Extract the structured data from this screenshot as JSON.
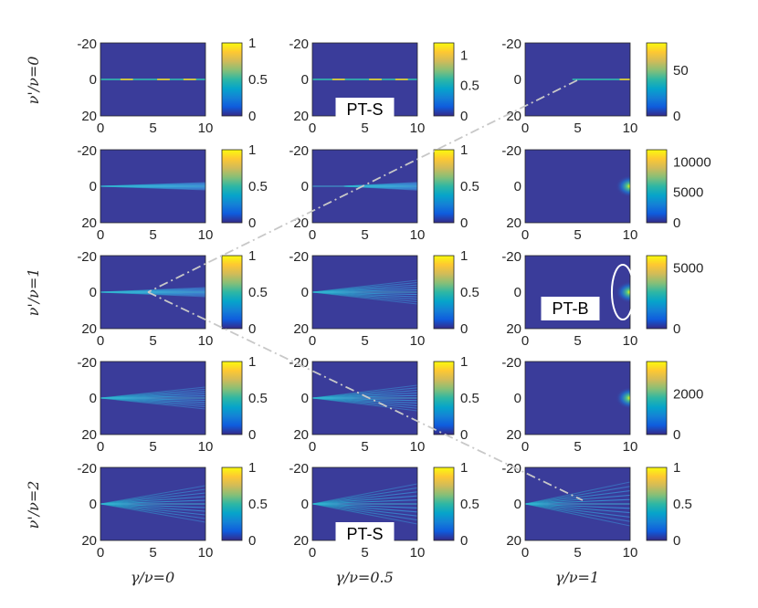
{
  "colors": {
    "background_low": "#3a3c9a",
    "colormap": [
      "#352a87",
      "#0f5cdd",
      "#1481d6",
      "#06a4ca",
      "#2eb7a4",
      "#87bf77",
      "#d1bb59",
      "#fec832",
      "#f9fb0e"
    ],
    "dashed_line": "#c8c8c8",
    "circle": "#ffffff"
  },
  "chart_data": {
    "type": "heatmap",
    "layout": "5 rows x 3 columns of heatmap panels, each with its own colorbar",
    "x_ticks": [
      "0",
      "5",
      "10"
    ],
    "y_ticks": [
      "-20",
      "0",
      "20"
    ],
    "xlim": [
      0,
      10
    ],
    "ylim": [
      -20,
      20
    ],
    "column_labels": [
      "γ/ν=0",
      "γ/ν=0.5",
      "γ/ν=1"
    ],
    "row_labels": [
      "ν'/ν=0",
      "",
      "ν'/ν=1",
      "",
      "ν'/ν=2"
    ],
    "panels": [
      {
        "row": 0,
        "col": 0,
        "colorbar_ticks": [
          "1",
          "0.5",
          "0"
        ],
        "cmax": 1,
        "pattern": "line"
      },
      {
        "row": 0,
        "col": 1,
        "colorbar_ticks": [
          "1",
          "0.5",
          "0"
        ],
        "cmax": 1.2,
        "pattern": "line",
        "callout": "PT-S"
      },
      {
        "row": 0,
        "col": 2,
        "colorbar_ticks": [
          "50",
          "0"
        ],
        "cmax": 80,
        "pattern": "line-right"
      },
      {
        "row": 1,
        "col": 0,
        "colorbar_ticks": [
          "1",
          "0.5",
          "0"
        ],
        "cmax": 1,
        "pattern": "fan",
        "spread": 0.2,
        "origin": 0
      },
      {
        "row": 1,
        "col": 1,
        "colorbar_ticks": [
          "1",
          "0.5",
          "0"
        ],
        "cmax": 1,
        "pattern": "fan",
        "spread": 0.3,
        "origin": 3
      },
      {
        "row": 1,
        "col": 2,
        "colorbar_ticks": [
          "10000",
          "5000",
          "0"
        ],
        "cmax": 12000,
        "pattern": "spot"
      },
      {
        "row": 2,
        "col": 0,
        "colorbar_ticks": [
          "1",
          "0.5",
          "0"
        ],
        "cmax": 1,
        "pattern": "fan",
        "spread": 0.25,
        "origin": 0
      },
      {
        "row": 2,
        "col": 1,
        "colorbar_ticks": [
          "1",
          "0.5",
          "0"
        ],
        "cmax": 1,
        "pattern": "fan",
        "spread": 0.65,
        "origin": 0
      },
      {
        "row": 2,
        "col": 2,
        "colorbar_ticks": [
          "5000",
          "0"
        ],
        "cmax": 6000,
        "pattern": "spot",
        "callout": "PT-B",
        "circle": true
      },
      {
        "row": 3,
        "col": 0,
        "colorbar_ticks": [
          "1",
          "0.5",
          "0"
        ],
        "cmax": 1,
        "pattern": "fan",
        "spread": 0.6,
        "origin": 0
      },
      {
        "row": 3,
        "col": 1,
        "colorbar_ticks": [
          "1",
          "0.5",
          "0"
        ],
        "cmax": 1,
        "pattern": "fan",
        "spread": 0.7,
        "origin": 0
      },
      {
        "row": 3,
        "col": 2,
        "colorbar_ticks": [
          "2000",
          "0"
        ],
        "cmax": 3600,
        "pattern": "spot"
      },
      {
        "row": 4,
        "col": 0,
        "colorbar_ticks": [
          "1",
          "0.5",
          "0"
        ],
        "cmax": 1,
        "pattern": "fan",
        "spread": 1.0,
        "origin": 0
      },
      {
        "row": 4,
        "col": 1,
        "colorbar_ticks": [
          "1",
          "0.5",
          "0"
        ],
        "cmax": 1,
        "pattern": "fan",
        "spread": 1.1,
        "origin": 0,
        "callout": "PT-S"
      },
      {
        "row": 4,
        "col": 2,
        "colorbar_ticks": [
          "1",
          "0.5",
          "0"
        ],
        "cmax": 1,
        "pattern": "fan",
        "spread": 1.2,
        "origin": 0
      }
    ]
  }
}
